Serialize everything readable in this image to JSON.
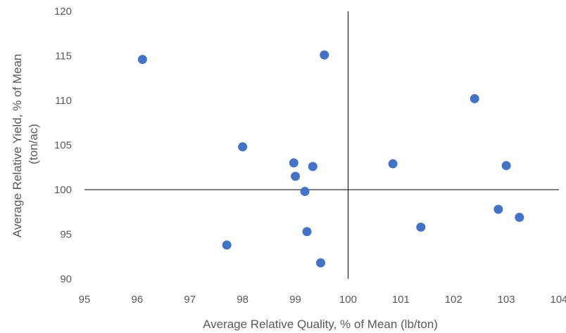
{
  "chart_data": {
    "type": "scatter",
    "xlabel": "Average Relative Quality, % of Mean (lb/ton)",
    "ylabel_lines": [
      "Average Relative Yield, % of Mean",
      "(ton/ac)"
    ],
    "xlim": [
      95,
      104
    ],
    "ylim": [
      90,
      120
    ],
    "xticks": [
      95,
      96,
      97,
      98,
      99,
      100,
      101,
      102,
      103,
      104
    ],
    "yticks": [
      90,
      95,
      100,
      105,
      110,
      115,
      120
    ],
    "reference_lines": {
      "x": 100,
      "y": 100
    },
    "grid": false,
    "marker_color": "#4472c4",
    "points": [
      {
        "x": 96.1,
        "y": 114.6
      },
      {
        "x": 99.55,
        "y": 115.1
      },
      {
        "x": 102.4,
        "y": 110.2
      },
      {
        "x": 98.0,
        "y": 104.8
      },
      {
        "x": 98.97,
        "y": 103.0
      },
      {
        "x": 99.33,
        "y": 102.6
      },
      {
        "x": 99.0,
        "y": 101.5
      },
      {
        "x": 100.85,
        "y": 102.9
      },
      {
        "x": 103.0,
        "y": 102.7
      },
      {
        "x": 99.18,
        "y": 99.8
      },
      {
        "x": 102.85,
        "y": 97.8
      },
      {
        "x": 103.25,
        "y": 96.9
      },
      {
        "x": 101.38,
        "y": 95.8
      },
      {
        "x": 99.22,
        "y": 95.3
      },
      {
        "x": 97.7,
        "y": 93.8
      },
      {
        "x": 99.48,
        "y": 91.8
      }
    ]
  }
}
